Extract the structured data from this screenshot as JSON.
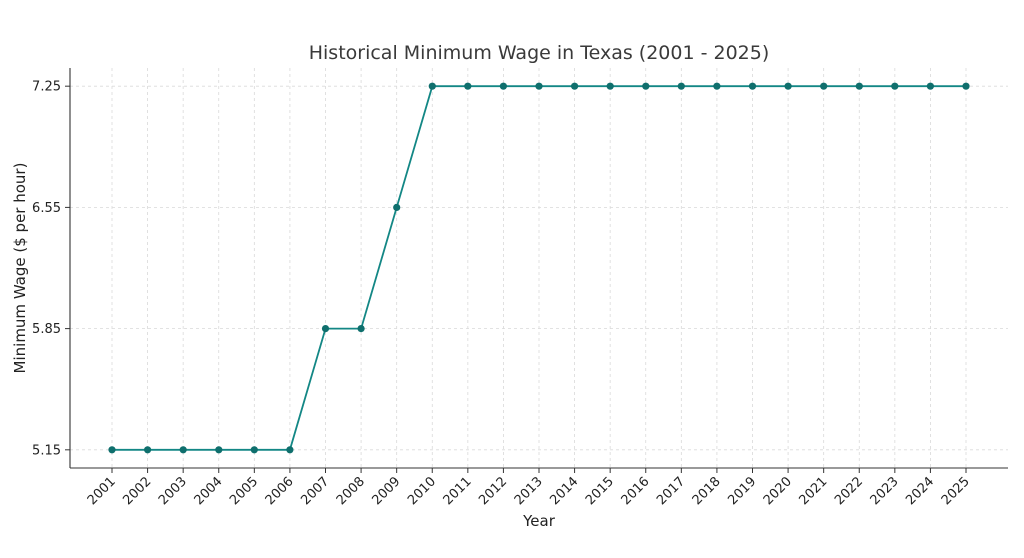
{
  "chart_data": {
    "type": "line",
    "title": "Historical Minimum Wage in Texas (2001 - 2025)",
    "xlabel": "Year",
    "ylabel": "Minimum Wage ($ per hour)",
    "x": [
      2001,
      2002,
      2003,
      2004,
      2005,
      2006,
      2007,
      2008,
      2009,
      2010,
      2011,
      2012,
      2013,
      2014,
      2015,
      2016,
      2017,
      2018,
      2019,
      2020,
      2021,
      2022,
      2023,
      2024,
      2025
    ],
    "values": [
      5.15,
      5.15,
      5.15,
      5.15,
      5.15,
      5.15,
      5.85,
      5.85,
      6.55,
      7.25,
      7.25,
      7.25,
      7.25,
      7.25,
      7.25,
      7.25,
      7.25,
      7.25,
      7.25,
      7.25,
      7.25,
      7.25,
      7.25,
      7.25,
      7.25
    ],
    "xticks": [
      "2001",
      "2002",
      "2003",
      "2004",
      "2005",
      "2006",
      "2007",
      "2008",
      "2009",
      "2010",
      "2011",
      "2012",
      "2013",
      "2014",
      "2015",
      "2016",
      "2017",
      "2018",
      "2019",
      "2020",
      "2021",
      "2022",
      "2023",
      "2024",
      "2025"
    ],
    "yticks": [
      5.15,
      5.85,
      6.55,
      7.25
    ],
    "ytick_labels": [
      "5.15",
      "5.85",
      "6.55",
      "7.25"
    ],
    "ylim": [
      5.045,
      7.355
    ],
    "grid": true,
    "line_color": "#138785",
    "marker_color": "#0f6f6d"
  }
}
